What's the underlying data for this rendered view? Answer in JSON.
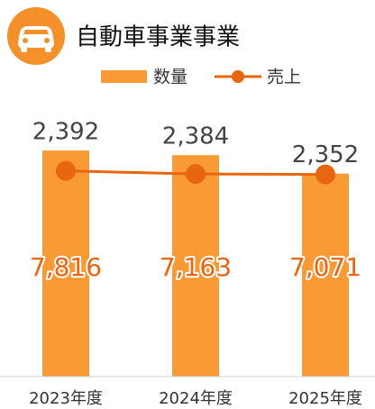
{
  "chart_data": {
    "type": "bar_line",
    "title": "自動車事業事業",
    "categories": [
      "2023年度",
      "2024年度",
      "2025年度"
    ],
    "series": [
      {
        "name": "数量",
        "type": "bar",
        "color": "#fa9a35",
        "values": [
          2392,
          2384,
          2352
        ],
        "value_labels": [
          "2,392",
          "2,384",
          "2,352"
        ]
      },
      {
        "name": "売上",
        "type": "line",
        "axis": "y2",
        "color": "#e8660f",
        "values": [
          7816,
          7163,
          7071
        ],
        "value_labels": [
          "7,816",
          "7,163",
          "7,071"
        ]
      }
    ],
    "ylim": [
      2000,
      2500
    ],
    "y2lim": [
      -35000,
      25000
    ],
    "legend": "top"
  }
}
